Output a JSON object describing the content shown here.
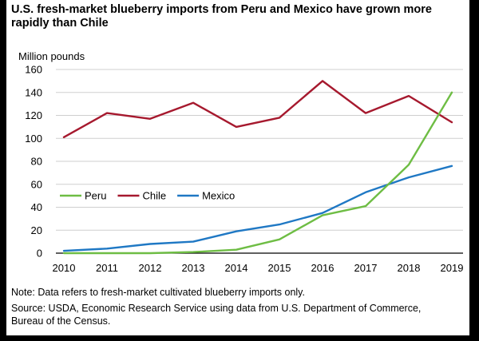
{
  "chart_data": {
    "type": "line",
    "title": "U.S. fresh-market blueberry imports from Peru and Mexico have grown more rapidly than Chile",
    "ylabel": "Million pounds",
    "xlabel": "",
    "x": [
      "2010",
      "2011",
      "2012",
      "2013",
      "2014",
      "2015",
      "2016",
      "2017",
      "2018",
      "2019"
    ],
    "ylim": [
      0,
      160
    ],
    "yticks": [
      0,
      20,
      40,
      60,
      80,
      100,
      120,
      140,
      160
    ],
    "grid": "horizontal",
    "legend_position": "middle-left",
    "series": [
      {
        "name": "Peru",
        "color": "#6ebd44",
        "values": [
          0,
          0,
          0,
          1,
          3,
          12,
          33,
          41,
          77,
          140
        ]
      },
      {
        "name": "Chile",
        "color": "#a6192e",
        "values": [
          101,
          122,
          117,
          131,
          110,
          118,
          150,
          122,
          137,
          114
        ]
      },
      {
        "name": "Mexico",
        "color": "#1f78c4",
        "values": [
          2,
          4,
          8,
          10,
          19,
          25,
          35,
          53,
          66,
          76
        ]
      }
    ]
  },
  "notes": {
    "note": "Note: Data refers to fresh-market cultivated blueberry imports only.",
    "source_line1": "Source: USDA, Economic Research Service using data from U.S. Department of Commerce,",
    "source_line2": "Bureau of the Census."
  }
}
